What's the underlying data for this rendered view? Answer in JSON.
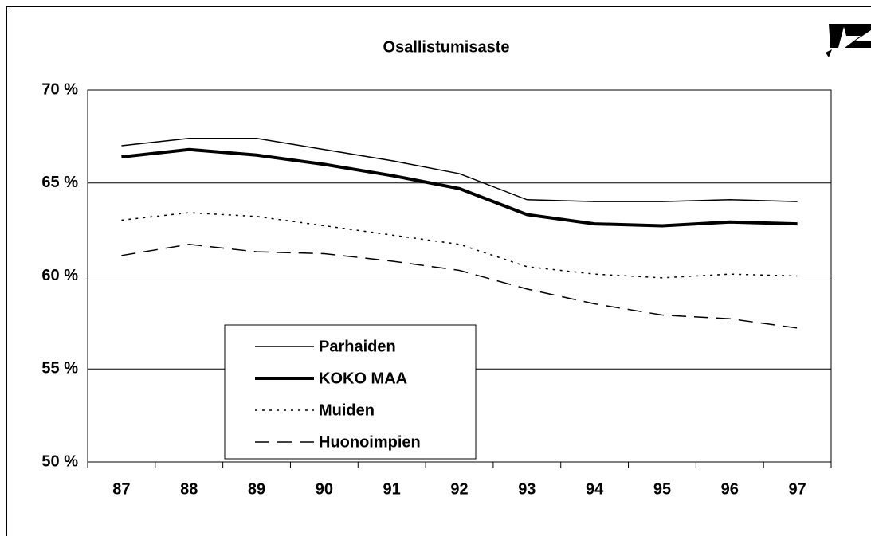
{
  "chart_data": {
    "type": "line",
    "title": "Osallistumisaste",
    "categories": [
      "87",
      "88",
      "89",
      "90",
      "91",
      "92",
      "93",
      "94",
      "95",
      "96",
      "97"
    ],
    "series": [
      {
        "name": "Parhaiden",
        "color": "#000000",
        "style": "solid",
        "width": 1.5,
        "values": [
          67.0,
          67.4,
          67.4,
          66.8,
          66.2,
          65.5,
          64.1,
          64.0,
          64.0,
          64.1,
          64.0
        ]
      },
      {
        "name": "KOKO MAA",
        "color": "#000000",
        "style": "solid",
        "width": 4,
        "values": [
          66.4,
          66.8,
          66.5,
          66.0,
          65.4,
          64.7,
          63.3,
          62.8,
          62.7,
          62.9,
          62.8
        ]
      },
      {
        "name": "Muiden",
        "color": "#000000",
        "style": "dotted",
        "width": 1.5,
        "values": [
          63.0,
          63.4,
          63.2,
          62.7,
          62.2,
          61.7,
          60.5,
          60.1,
          59.9,
          60.1,
          60.0
        ]
      },
      {
        "name": "Huonoimpien",
        "color": "#000000",
        "style": "dashed",
        "width": 1.5,
        "values": [
          61.1,
          61.7,
          61.3,
          61.2,
          60.8,
          60.3,
          59.3,
          58.5,
          57.9,
          57.7,
          57.2
        ]
      }
    ],
    "ylim": [
      50,
      70
    ],
    "yticks": [
      {
        "value": 50,
        "label": "50 %"
      },
      {
        "value": 55,
        "label": "55 %"
      },
      {
        "value": 60,
        "label": "60 %"
      },
      {
        "value": 65,
        "label": "65 %"
      },
      {
        "value": 70,
        "label": "70 %"
      }
    ],
    "grid": true,
    "legend": "lower left"
  }
}
